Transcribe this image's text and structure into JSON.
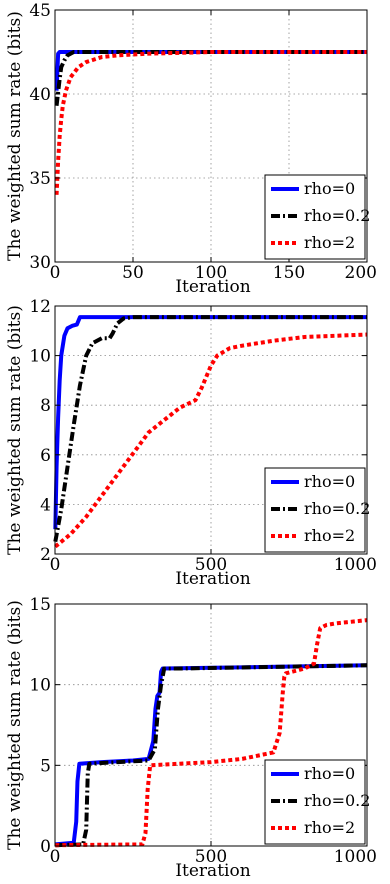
{
  "chart_data": [
    {
      "type": "line",
      "xlabel": "Iteration",
      "ylabel": "The weighted sum rate (bits)",
      "xlim": [
        0,
        200
      ],
      "ylim": [
        30,
        45
      ],
      "xticks": [
        0,
        50,
        100,
        150,
        200
      ],
      "yticks": [
        30,
        35,
        40,
        45
      ],
      "grid": true,
      "legend_position": "bottom-right",
      "series": [
        {
          "name": "rho=0",
          "color": "#0000ff",
          "dash": "solid",
          "x": [
            1,
            2,
            3,
            200
          ],
          "y": [
            40.2,
            42.4,
            42.5,
            42.5
          ]
        },
        {
          "name": "rho=0.2",
          "color": "#000000",
          "dash": "dashdot",
          "x": [
            1,
            2,
            3,
            4,
            6,
            8,
            12,
            200
          ],
          "y": [
            39.3,
            40.1,
            40.9,
            41.6,
            42.0,
            42.3,
            42.5,
            42.5
          ]
        },
        {
          "name": "rho=2",
          "color": "#ff0000",
          "dash": "dotted",
          "x": [
            1,
            2,
            3,
            4,
            5,
            7,
            10,
            15,
            20,
            30,
            40,
            60,
            100,
            150,
            200
          ],
          "y": [
            34.0,
            36.0,
            37.5,
            38.5,
            39.3,
            40.2,
            41.0,
            41.6,
            41.9,
            42.2,
            42.3,
            42.4,
            42.5,
            42.5,
            42.5
          ]
        }
      ]
    },
    {
      "type": "line",
      "xlabel": "Iteration",
      "ylabel": "The weighted sum rate (bits)",
      "xlim": [
        0,
        1000
      ],
      "ylim": [
        2,
        12
      ],
      "xticks": [
        0,
        500,
        1000
      ],
      "yticks": [
        2,
        4,
        6,
        8,
        10,
        12
      ],
      "grid": true,
      "legend_position": "bottom-right",
      "series": [
        {
          "name": "rho=0",
          "color": "#0000ff",
          "dash": "solid",
          "x": [
            1,
            5,
            10,
            15,
            20,
            30,
            40,
            55,
            70,
            80,
            1000
          ],
          "y": [
            3.0,
            5.5,
            7.5,
            9.0,
            10.0,
            10.8,
            11.1,
            11.2,
            11.25,
            11.55,
            11.55
          ]
        },
        {
          "name": "rho=0.2",
          "color": "#000000",
          "dash": "dashdot",
          "x": [
            1,
            20,
            40,
            60,
            80,
            100,
            120,
            150,
            175,
            185,
            200,
            220,
            250,
            1000
          ],
          "y": [
            2.5,
            3.8,
            5.5,
            7.2,
            8.8,
            10.0,
            10.5,
            10.7,
            10.7,
            10.9,
            11.3,
            11.5,
            11.55,
            11.55
          ]
        },
        {
          "name": "rho=2",
          "color": "#ff0000",
          "dash": "dotted",
          "x": [
            1,
            50,
            100,
            200,
            300,
            400,
            450,
            470,
            500,
            520,
            560,
            600,
            700,
            800,
            900,
            1000
          ],
          "y": [
            2.3,
            2.8,
            3.5,
            5.2,
            6.9,
            7.9,
            8.2,
            8.7,
            9.6,
            10.0,
            10.3,
            10.4,
            10.6,
            10.75,
            10.8,
            10.85
          ]
        }
      ]
    },
    {
      "type": "line",
      "xlabel": "Iteration",
      "ylabel": "The weighted sum rate (bits)",
      "xlim": [
        0,
        1000
      ],
      "ylim": [
        0,
        15
      ],
      "xticks": [
        0,
        500,
        1000
      ],
      "yticks": [
        0,
        5,
        10,
        15
      ],
      "grid": true,
      "legend_position": "bottom-right",
      "series": [
        {
          "name": "rho=0",
          "color": "#0000ff",
          "dash": "solid",
          "x": [
            1,
            60,
            68,
            72,
            78,
            150,
            250,
            300,
            315,
            322,
            328,
            335,
            340,
            345,
            1000
          ],
          "y": [
            0.1,
            0.2,
            1.5,
            4.0,
            5.1,
            5.2,
            5.3,
            5.4,
            6.5,
            8.5,
            9.3,
            9.5,
            10.8,
            11.0,
            11.2
          ]
        },
        {
          "name": "rho=0.2",
          "color": "#000000",
          "dash": "dashdot",
          "x": [
            1,
            90,
            100,
            105,
            110,
            200,
            300,
            320,
            330,
            340,
            350,
            400,
            1000
          ],
          "y": [
            0.05,
            0.1,
            1.0,
            4.5,
            5.1,
            5.2,
            5.3,
            6.0,
            8.5,
            10.0,
            11.0,
            11.0,
            11.2
          ]
        },
        {
          "name": "rho=2",
          "color": "#ff0000",
          "dash": "dotted",
          "x": [
            1,
            280,
            290,
            297,
            305,
            400,
            500,
            600,
            700,
            720,
            730,
            735,
            740,
            760,
            800,
            830,
            840,
            850,
            870,
            900,
            1000
          ],
          "y": [
            0.05,
            0.1,
            0.8,
            3.5,
            5.0,
            5.1,
            5.2,
            5.4,
            5.8,
            7.0,
            9.5,
            10.5,
            10.7,
            10.8,
            11.0,
            11.3,
            12.5,
            13.5,
            13.7,
            13.8,
            14.0
          ]
        }
      ]
    }
  ]
}
